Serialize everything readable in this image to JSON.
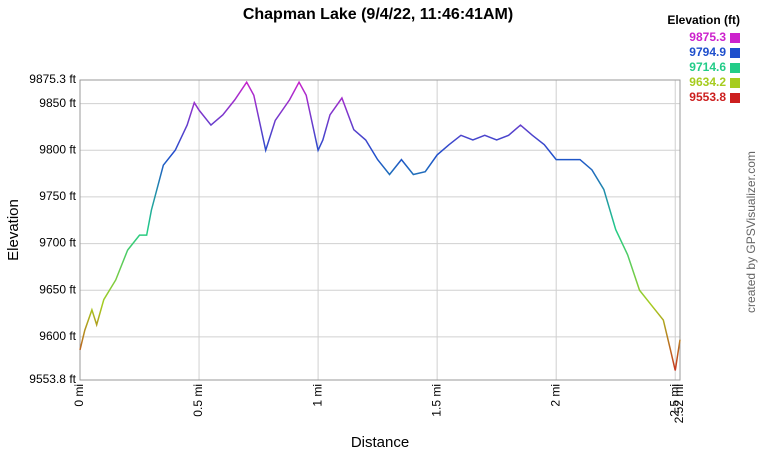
{
  "chart_data": {
    "type": "line",
    "title": "Chapman Lake (9/4/22, 11:46:41AM)",
    "x_label": "Distance",
    "y_label": "Elevation",
    "credit": "created by GPSVisualizer.com",
    "legend_title": "Elevation (ft)",
    "legend": [
      {
        "value": 9875.3,
        "color": "#cc22cc"
      },
      {
        "value": 9794.9,
        "color": "#1f4fcc"
      },
      {
        "value": 9714.6,
        "color": "#22cc88"
      },
      {
        "value": 9634.2,
        "color": "#a6cc1f"
      },
      {
        "value": 9553.8,
        "color": "#cc1f1f"
      }
    ],
    "x": [
      0,
      0.02,
      0.05,
      0.07,
      0.1,
      0.15,
      0.2,
      0.25,
      0.28,
      0.3,
      0.35,
      0.4,
      0.45,
      0.48,
      0.5,
      0.55,
      0.6,
      0.65,
      0.7,
      0.73,
      0.78,
      0.82,
      0.88,
      0.92,
      0.95,
      1.0,
      1.02,
      1.05,
      1.1,
      1.15,
      1.2,
      1.25,
      1.3,
      1.35,
      1.4,
      1.45,
      1.5,
      1.55,
      1.6,
      1.65,
      1.7,
      1.75,
      1.8,
      1.85,
      1.9,
      1.95,
      2.0,
      2.05,
      2.1,
      2.15,
      2.2,
      2.25,
      2.3,
      2.35,
      2.4,
      2.45,
      2.48,
      2.5,
      2.52
    ],
    "values": [
      9586,
      9607,
      9629,
      9613,
      9640,
      9661,
      9693,
      9709,
      9709,
      9736,
      9784,
      9800,
      9827,
      9851,
      9843,
      9827,
      9838,
      9854,
      9873,
      9859,
      9800,
      9832,
      9854,
      9873,
      9859,
      9800,
      9811,
      9838,
      9856,
      9822,
      9811,
      9790,
      9774,
      9790,
      9774,
      9777,
      9795,
      9806,
      9816,
      9811,
      9816,
      9811,
      9816,
      9827,
      9816,
      9806,
      9790,
      9790,
      9790,
      9779,
      9758,
      9715,
      9688,
      9650,
      9634,
      9618,
      9586,
      9564,
      9597
    ],
    "xlim": [
      0,
      2.52
    ],
    "ylim": [
      9553.8,
      9875.3
    ],
    "xticks": [
      {
        "value": 0,
        "label": "0 mi"
      },
      {
        "value": 0.5,
        "label": "0.5 mi"
      },
      {
        "value": 1,
        "label": "1 mi"
      },
      {
        "value": 1.5,
        "label": "1.5 mi"
      },
      {
        "value": 2,
        "label": "2 mi"
      },
      {
        "value": 2.5,
        "label": "2.5 mi"
      },
      {
        "value": 2.52,
        "label": "2.52 mi"
      }
    ],
    "yticks": [
      {
        "value": 9553.8,
        "label": "9553.8 ft"
      },
      {
        "value": 9600,
        "label": "9600 ft"
      },
      {
        "value": 9650,
        "label": "9650 ft"
      },
      {
        "value": 9700,
        "label": "9700 ft"
      },
      {
        "value": 9750,
        "label": "9750 ft"
      },
      {
        "value": 9800,
        "label": "9800 ft"
      },
      {
        "value": 9850,
        "label": "9850 ft"
      },
      {
        "value": 9875.3,
        "label": "9875.3 ft"
      }
    ],
    "grid": true
  }
}
